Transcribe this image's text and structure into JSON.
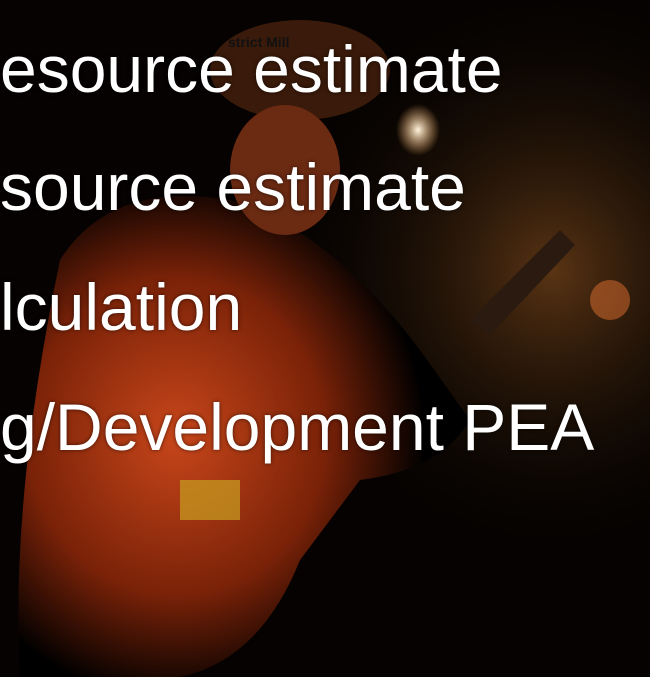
{
  "caption": "strict Mill",
  "lines": [
    "esource estimate",
    "source estimate",
    "lculation",
    "g/Development PEA"
  ]
}
